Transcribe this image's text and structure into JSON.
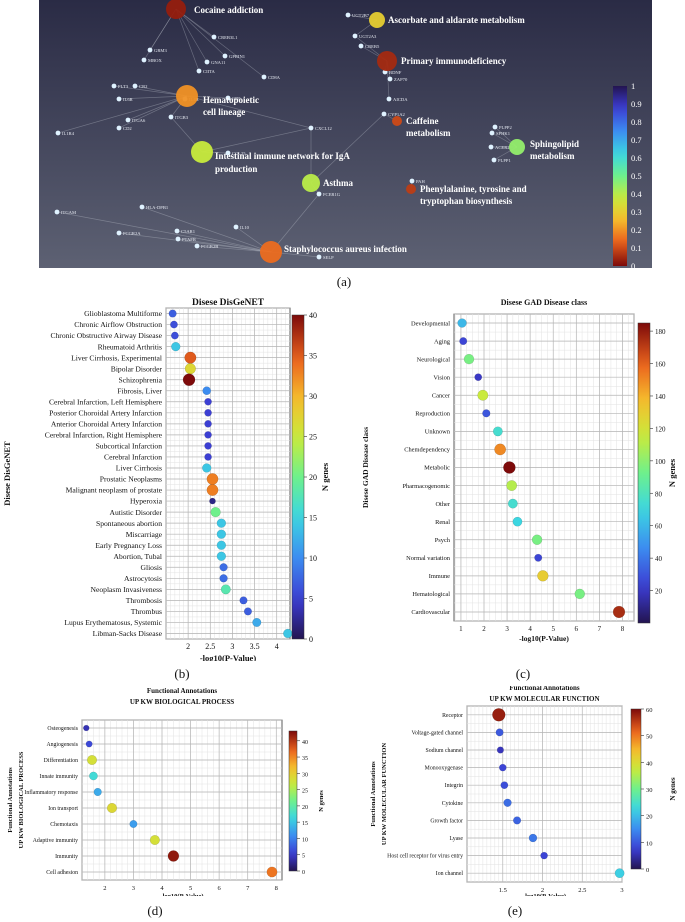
{
  "colors": {
    "net_bg_top": "#2a2b45",
    "net_bg_bottom": "#5d6173",
    "accent_dark_red": "#7f0000"
  },
  "captions": {
    "a": "(a)",
    "b": "(b)",
    "c": "(c)",
    "d": "(d)",
    "e": "(e)"
  },
  "chart_data": [
    {
      "id": "a",
      "type": "network",
      "colorbar": {
        "ticks": [
          "0",
          "0.1",
          "0.2",
          "0.3",
          "0.4",
          "0.5",
          "0.6",
          "0.7",
          "0.8",
          "0.9",
          "1"
        ],
        "range": [
          0,
          1
        ]
      },
      "pathways": [
        {
          "label": "Cocaine addiction",
          "value": 0.03
        },
        {
          "label": "Ascorbate and aldarate metabolism",
          "value": 0.3
        },
        {
          "label": "Primary immunodeficiency",
          "value": 0.05
        },
        {
          "label": "Hematopoietic cell lineage",
          "value": 0.2
        },
        {
          "label": "Caffeine metabolism",
          "value": 0.1
        },
        {
          "label": "Sphingolipid metabolism",
          "value": 0.45
        },
        {
          "label": "Intestinal immune network for IgA production",
          "value": 0.38
        },
        {
          "label": "Asthma",
          "value": 0.4
        },
        {
          "label": "Phenylalanine, tyrosine and tryptophan biosynthesis",
          "value": 0.08
        },
        {
          "label": "Staphylococcus aureus infection",
          "value": 0.15
        }
      ],
      "genes": [
        "UGT2B7",
        "CREB3L1",
        "UGT2A3",
        "GRM3",
        "GPRIN1",
        "MBOX",
        "GNA11",
        "CREB5",
        "CIITA",
        "BDNF",
        "CD8A",
        "ZAP70",
        "FLT3",
        "CR2",
        "IL6R",
        "IL4R",
        "CD5",
        "AICDA",
        "CYP1A2",
        "ITGB3",
        "ITGA6",
        "PLPP2",
        "CD2",
        "CXCL12",
        "SPHK1",
        "IL1R4",
        "ACER2",
        "CCL25",
        "PLPP1",
        "FCER1G",
        "PAH",
        "ITGAM",
        "HLA-DPB1",
        "IL10",
        "FCGR2A",
        "C5AR1",
        "PTAFR",
        "FCGR2B",
        "SELP"
      ]
    },
    {
      "id": "b",
      "type": "scatter",
      "title": "Disese DisGeNET",
      "xlabel": "-log10(P-Value)",
      "ylabel": "Disese DisGeNET",
      "xlim": [
        1.5,
        4.3
      ],
      "xticks": [
        "2",
        "2.5",
        "3",
        "3.5",
        "4"
      ],
      "colorbar_label": "N genes",
      "colorbar_ticks": [
        "0",
        "5",
        "10",
        "15",
        "20",
        "25",
        "30",
        "35",
        "40"
      ],
      "cmax": 40,
      "categories": [
        "Glioblastoma Multiforme",
        "Chronic Airflow Obstruction",
        "Chronic Obstructive Airway Disease",
        "Rheumatoid Arthritis",
        "Liver Cirrhosis, Experimental",
        "Bipolar Disorder",
        "Schizophrenia",
        "Fibrosis, Liver",
        "Cerebral Infarction, Left Hemisphere",
        "Posterior Choroidal Artery Infarction",
        "Anterior Choroidal Artery Infarction",
        "Cerebral Infarction, Right Hemisphere",
        "Subcortical Infarction",
        "Cerebral Infarction",
        "Liver Cirrhosis",
        "Prostatic Neoplasms",
        "Malignant neoplasm of prostate",
        "Hyperoxia",
        "Autistic Disorder",
        "Spontaneous abortion",
        "Miscarriage",
        "Early Pregnancy Loss",
        "Abortion, Tubal",
        "Gliosis",
        "Astrocytosis",
        "Neoplasm Invasiveness",
        "Thrombosis",
        "Thrombus",
        "Lupus Erythematosus, Systemic",
        "Libman-Sacks Disease"
      ],
      "x": [
        1.65,
        1.68,
        1.7,
        1.72,
        2.05,
        2.05,
        2.02,
        2.42,
        2.45,
        2.45,
        2.45,
        2.45,
        2.45,
        2.45,
        2.42,
        2.55,
        2.55,
        2.55,
        2.62,
        2.75,
        2.75,
        2.75,
        2.75,
        2.8,
        2.8,
        2.85,
        3.25,
        3.35,
        3.55,
        4.25
      ],
      "n": [
        7,
        6,
        6,
        14,
        35,
        27,
        40,
        10,
        5,
        5,
        5,
        5,
        5,
        5,
        14,
        33,
        33,
        2,
        20,
        14,
        14,
        14,
        14,
        8,
        8,
        18,
        7,
        7,
        12,
        14
      ]
    },
    {
      "id": "c",
      "type": "scatter",
      "title": "Disese GAD Disease class",
      "xlabel": "-log10(P-Value)",
      "ylabel": "Disese GAD Disease class",
      "xlim": [
        0.7,
        8.5
      ],
      "xticks": [
        "1",
        "2",
        "3",
        "4",
        "5",
        "6",
        "7",
        "8"
      ],
      "colorbar_label": "N genes",
      "colorbar_ticks": [
        "20",
        "40",
        "60",
        "80",
        "100",
        "120",
        "140",
        "160",
        "180"
      ],
      "cmax": 185,
      "categories": [
        "Developmental",
        "Aging",
        "Neurological",
        "Vision",
        "Cancer",
        "Reproduction",
        "Unknown",
        "Chemdependency",
        "Metabolic",
        "Pharmacogenomic",
        "Other",
        "Renal",
        "Psych",
        "Normal variation",
        "Immune",
        "Hematological",
        "Cardiovascular"
      ],
      "x": [
        1.05,
        1.1,
        1.35,
        1.75,
        1.95,
        2.1,
        2.6,
        2.7,
        3.1,
        3.2,
        3.25,
        3.45,
        4.3,
        4.35,
        4.55,
        6.15,
        7.85
      ],
      "n": [
        60,
        25,
        95,
        20,
        115,
        30,
        75,
        150,
        185,
        110,
        75,
        70,
        95,
        25,
        130,
        95,
        175
      ]
    },
    {
      "id": "d",
      "type": "scatter",
      "title": "Functional Annotations",
      "subtitle": "UP KW BIOLOGICAL PROCESS",
      "xlabel": "-log10(P-Value)",
      "ylabel": "Functional Annotations\nUP KW BIOLOGICAL PROCESS",
      "xlim": [
        1.2,
        8.2
      ],
      "xticks": [
        "2",
        "3",
        "4",
        "5",
        "6",
        "7",
        "8"
      ],
      "colorbar_label": "N genes",
      "colorbar_ticks": [
        "0",
        "5",
        "10",
        "15",
        "20",
        "25",
        "30",
        "35",
        "40"
      ],
      "cmax": 43,
      "categories": [
        "Osteogenesis",
        "Angiogenesis",
        "Differentiation",
        "Innate immunity",
        "Inflammatory response",
        "Ion transport",
        "Chemotaxis",
        "Adaptive immunity",
        "Immunity",
        "Cell adhesion"
      ],
      "x": [
        1.35,
        1.45,
        1.55,
        1.6,
        1.75,
        2.25,
        3.0,
        3.75,
        4.4,
        7.85
      ],
      "n": [
        4,
        6,
        28,
        17,
        13,
        29,
        12,
        28,
        42,
        36
      ]
    },
    {
      "id": "e",
      "type": "scatter",
      "title": "Functional Annotations",
      "subtitle": "UP KW MOLECULAR FUNCTION",
      "xlabel": "-log10(P-Value)",
      "ylabel": "Functional Annotations\nUP KW MOLECULAR FUNCTION",
      "xlim": [
        1.05,
        3.0
      ],
      "xticks": [
        "1.5",
        "2",
        "2.5",
        "3"
      ],
      "colorbar_label": "N genes",
      "colorbar_ticks": [
        "0",
        "10",
        "20",
        "30",
        "40",
        "50",
        "60"
      ],
      "cmax": 60,
      "categories": [
        "Receptor",
        "Voltage-gated channel",
        "Sodium channel",
        "Monooxygenase",
        "Integrin",
        "Cytokine",
        "Growth factor",
        "Lyase",
        "Host cell receptor for virus entry",
        "Ion channel"
      ],
      "x": [
        1.45,
        1.46,
        1.47,
        1.5,
        1.52,
        1.56,
        1.68,
        1.88,
        2.02,
        2.97
      ],
      "n": [
        58,
        10,
        6,
        8,
        9,
        12,
        11,
        13,
        8,
        22
      ]
    }
  ]
}
